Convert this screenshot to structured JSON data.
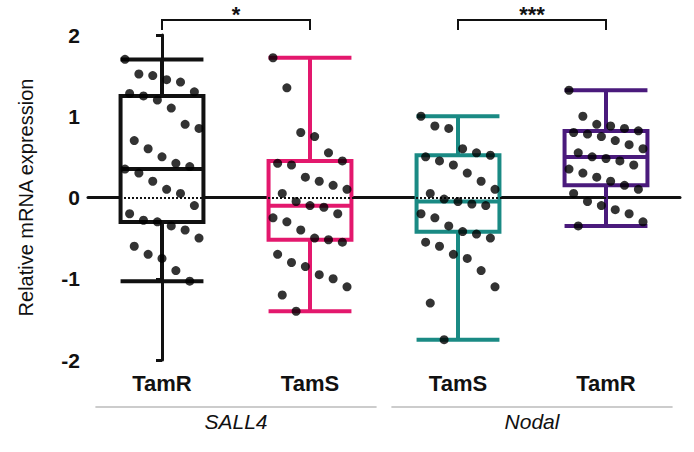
{
  "chart_data": {
    "type": "boxplot",
    "y_label": "Relative mRNA expression",
    "categories": [
      "TamR",
      "TamS",
      "TamS",
      "TamR"
    ],
    "colors": [
      "#111111",
      "#e3186d",
      "#1a8a84",
      "#4a1a7c"
    ],
    "boxes": [
      [
        -1.03,
        -0.3,
        0.35,
        1.25,
        1.7
      ],
      [
        -1.4,
        -0.52,
        -0.1,
        0.45,
        1.72
      ],
      [
        -1.75,
        -0.42,
        -0.05,
        0.52,
        1.0
      ],
      [
        -0.35,
        0.15,
        0.5,
        0.82,
        1.32
      ]
    ],
    "points": [
      [
        1.7,
        1.52,
        1.5,
        1.45,
        1.42,
        1.3,
        1.28,
        1.25,
        1.2,
        1.1,
        0.9,
        0.85,
        0.7,
        0.6,
        0.5,
        0.42,
        0.38,
        0.35,
        0.3,
        0.2,
        0.1,
        0.05,
        -0.1,
        -0.2,
        -0.28,
        -0.3,
        -0.35,
        -0.4,
        -0.5,
        -0.6,
        -0.7,
        -0.75,
        -0.9,
        -1.03
      ],
      [
        1.72,
        1.35,
        0.8,
        0.75,
        0.55,
        0.45,
        0.42,
        0.4,
        0.25,
        0.2,
        0.15,
        0.1,
        0.05,
        -0.05,
        -0.1,
        -0.12,
        -0.2,
        -0.25,
        -0.3,
        -0.4,
        -0.5,
        -0.52,
        -0.55,
        -0.7,
        -0.8,
        -0.85,
        -0.95,
        -1.0,
        -1.1,
        -1.2,
        -1.4
      ],
      [
        1.0,
        0.88,
        0.85,
        0.6,
        0.55,
        0.52,
        0.5,
        0.45,
        0.4,
        0.3,
        0.2,
        0.1,
        0.05,
        -0.02,
        -0.05,
        -0.08,
        -0.1,
        -0.2,
        -0.25,
        -0.35,
        -0.42,
        -0.45,
        -0.5,
        -0.55,
        -0.6,
        -0.7,
        -0.75,
        -0.9,
        -1.1,
        -1.3,
        -1.75
      ],
      [
        1.32,
        1.0,
        0.9,
        0.88,
        0.85,
        0.82,
        0.8,
        0.78,
        0.75,
        0.7,
        0.65,
        0.6,
        0.55,
        0.5,
        0.48,
        0.45,
        0.4,
        0.35,
        0.3,
        0.25,
        0.2,
        0.15,
        0.1,
        0.05,
        -0.05,
        -0.1,
        -0.15,
        -0.2,
        -0.3,
        -0.35
      ]
    ],
    "groups": [
      {
        "label": "SALL4",
        "span": [
          0,
          1
        ]
      },
      {
        "label": "Nodal",
        "span": [
          2,
          3
        ]
      }
    ],
    "significance": [
      {
        "text": "*",
        "between": [
          0,
          1
        ]
      },
      {
        "text": "***",
        "between": [
          2,
          3
        ]
      }
    ],
    "reference_line": {
      "y": 0,
      "line_style": "dotted"
    },
    "ylim": [
      -2,
      2
    ],
    "yticks": [
      -2,
      -1,
      0,
      1,
      2
    ],
    "grid": false
  }
}
